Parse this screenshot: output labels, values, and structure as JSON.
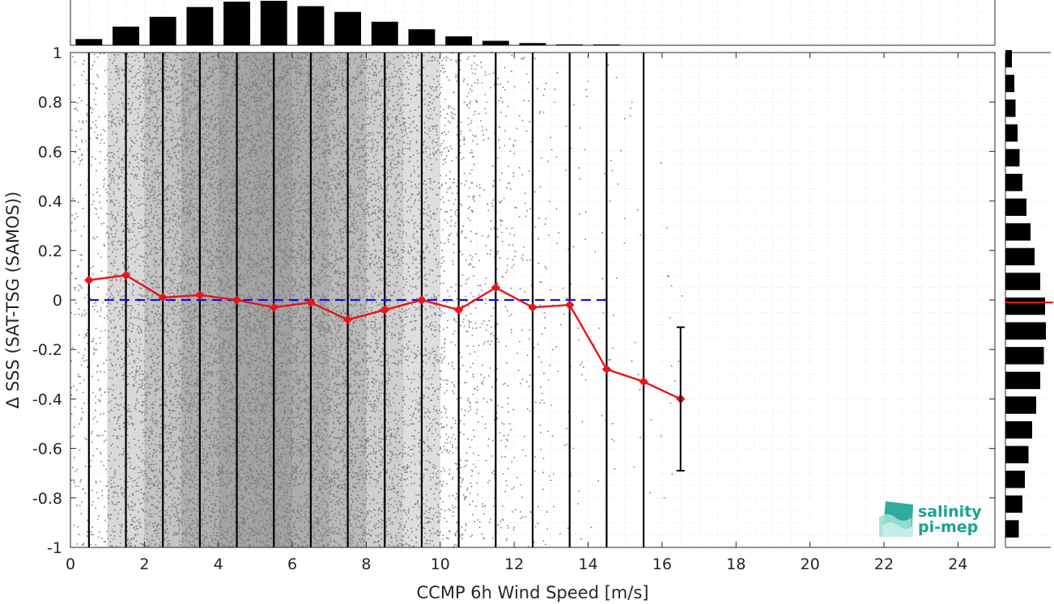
{
  "chart_data": {
    "type": "scatter",
    "xlabel": "CCMP 6h Wind Speed [m/s]",
    "ylabel": "Δ SSS (SAT-TSG (SAMOS))",
    "xlim": [
      0,
      25
    ],
    "ylim": [
      -1,
      1
    ],
    "x_ticks": [
      0,
      2,
      4,
      6,
      8,
      10,
      12,
      14,
      16,
      18,
      20,
      22,
      24
    ],
    "y_ticks": [
      -1,
      -0.8,
      -0.6,
      -0.4,
      -0.2,
      0,
      0.2,
      0.4,
      0.6,
      0.8,
      1
    ],
    "y_tick_labels": [
      "-1",
      "-0.8",
      "-0.6",
      "-0.4",
      "-0.2",
      "0",
      "0.2",
      "0.4",
      "0.6",
      "0.8",
      "1"
    ],
    "grid": true,
    "bin_edges": [
      0.5,
      1.5,
      2.5,
      3.5,
      4.5,
      5.5,
      6.5,
      7.5,
      8.5,
      9.5,
      10.5,
      11.5,
      12.5,
      13.5,
      14.5,
      15.5
    ],
    "median_series": {
      "x": [
        0.5,
        1.5,
        2.5,
        3.5,
        4.5,
        5.5,
        6.5,
        7.5,
        8.5,
        9.5,
        10.5,
        11.5,
        12.5,
        13.5,
        14.5,
        15.5,
        16.5
      ],
      "y": [
        0.08,
        0.1,
        0.01,
        0.02,
        0.0,
        -0.03,
        -0.01,
        -0.08,
        -0.04,
        0.0,
        -0.04,
        0.05,
        -0.03,
        -0.02,
        -0.28,
        -0.33,
        -0.4
      ],
      "color": "#e8141c"
    },
    "reference_line": {
      "y": 0,
      "color": "#1010e0",
      "style": "dashed"
    },
    "error_bar": {
      "x": 16.5,
      "low": -0.69,
      "high": -0.11,
      "color": "#000000"
    },
    "scatter_color": "#808080",
    "top_histogram": {
      "x": [
        0.5,
        1.5,
        2.5,
        3.5,
        4.5,
        5.5,
        6.5,
        7.5,
        8.5,
        9.5,
        10.5,
        11.5,
        12.5,
        13.5,
        14.5
      ],
      "counts": [
        0.14,
        0.42,
        0.64,
        0.86,
        0.98,
        1.0,
        0.88,
        0.75,
        0.53,
        0.36,
        0.2,
        0.1,
        0.05,
        0.02,
        0.01
      ]
    },
    "right_histogram": {
      "y": [
        0.975,
        0.875,
        0.775,
        0.675,
        0.575,
        0.475,
        0.375,
        0.275,
        0.175,
        0.075,
        -0.025,
        -0.125,
        -0.225,
        -0.325,
        -0.425,
        -0.525,
        -0.625,
        -0.725,
        -0.825,
        -0.925
      ],
      "counts": [
        0.16,
        0.22,
        0.25,
        0.3,
        0.35,
        0.42,
        0.52,
        0.62,
        0.72,
        0.86,
        0.98,
        1.0,
        0.95,
        0.86,
        0.76,
        0.66,
        0.57,
        0.48,
        0.42,
        0.33
      ],
      "median_y": -0.01,
      "median_color": "#e8141c"
    }
  },
  "logo": {
    "line1": "salinity",
    "line2": "pi-mep",
    "color": "#1aa393"
  }
}
